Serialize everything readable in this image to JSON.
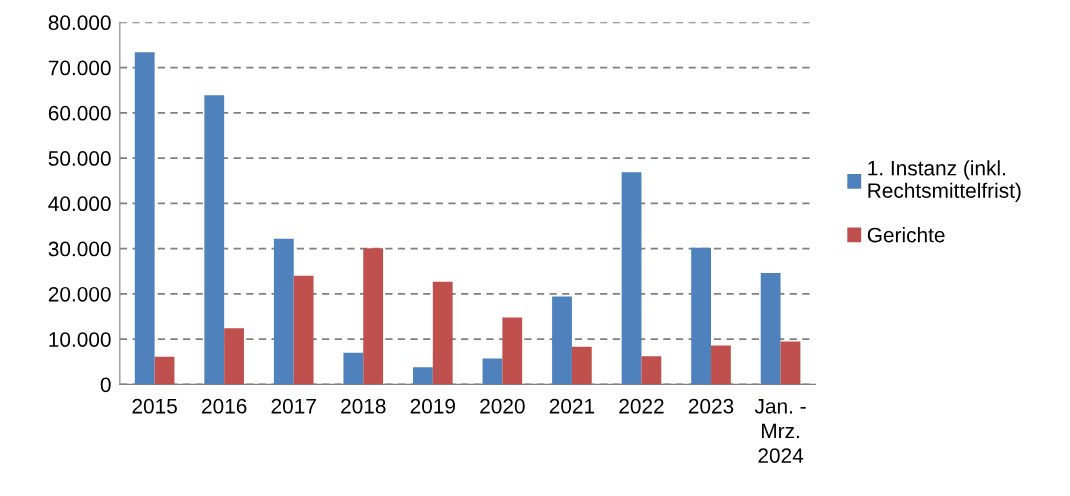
{
  "chart_data": {
    "type": "bar",
    "categories": [
      "2015",
      "2016",
      "2017",
      "2018",
      "2019",
      "2020",
      "2021",
      "2022",
      "2023",
      "Jan. -\nMrz.\n2024"
    ],
    "series": [
      {
        "name": "1. Instanz (inkl.\nRechtsmittelfrist)",
        "color": "#4f81bd",
        "values": [
          73400,
          63900,
          32200,
          7000,
          3800,
          5700,
          19400,
          46900,
          30200,
          24600
        ]
      },
      {
        "name": "Gerichte",
        "color": "#c0504d",
        "values": [
          6100,
          12400,
          24000,
          30100,
          22700,
          14800,
          8300,
          6200,
          8600,
          9500
        ]
      }
    ],
    "ylim": [
      0,
      80000
    ],
    "yticks": [
      {
        "value": 0,
        "label": "0"
      },
      {
        "value": 10000,
        "label": "10.000"
      },
      {
        "value": 20000,
        "label": "20.000"
      },
      {
        "value": 30000,
        "label": "30.000"
      },
      {
        "value": 40000,
        "label": "40.000"
      },
      {
        "value": 50000,
        "label": "50.000"
      },
      {
        "value": 60000,
        "label": "60.000"
      },
      {
        "value": 70000,
        "label": "70.000"
      },
      {
        "value": 80000,
        "label": "80.000"
      }
    ],
    "grid": "y",
    "legend": "right"
  }
}
